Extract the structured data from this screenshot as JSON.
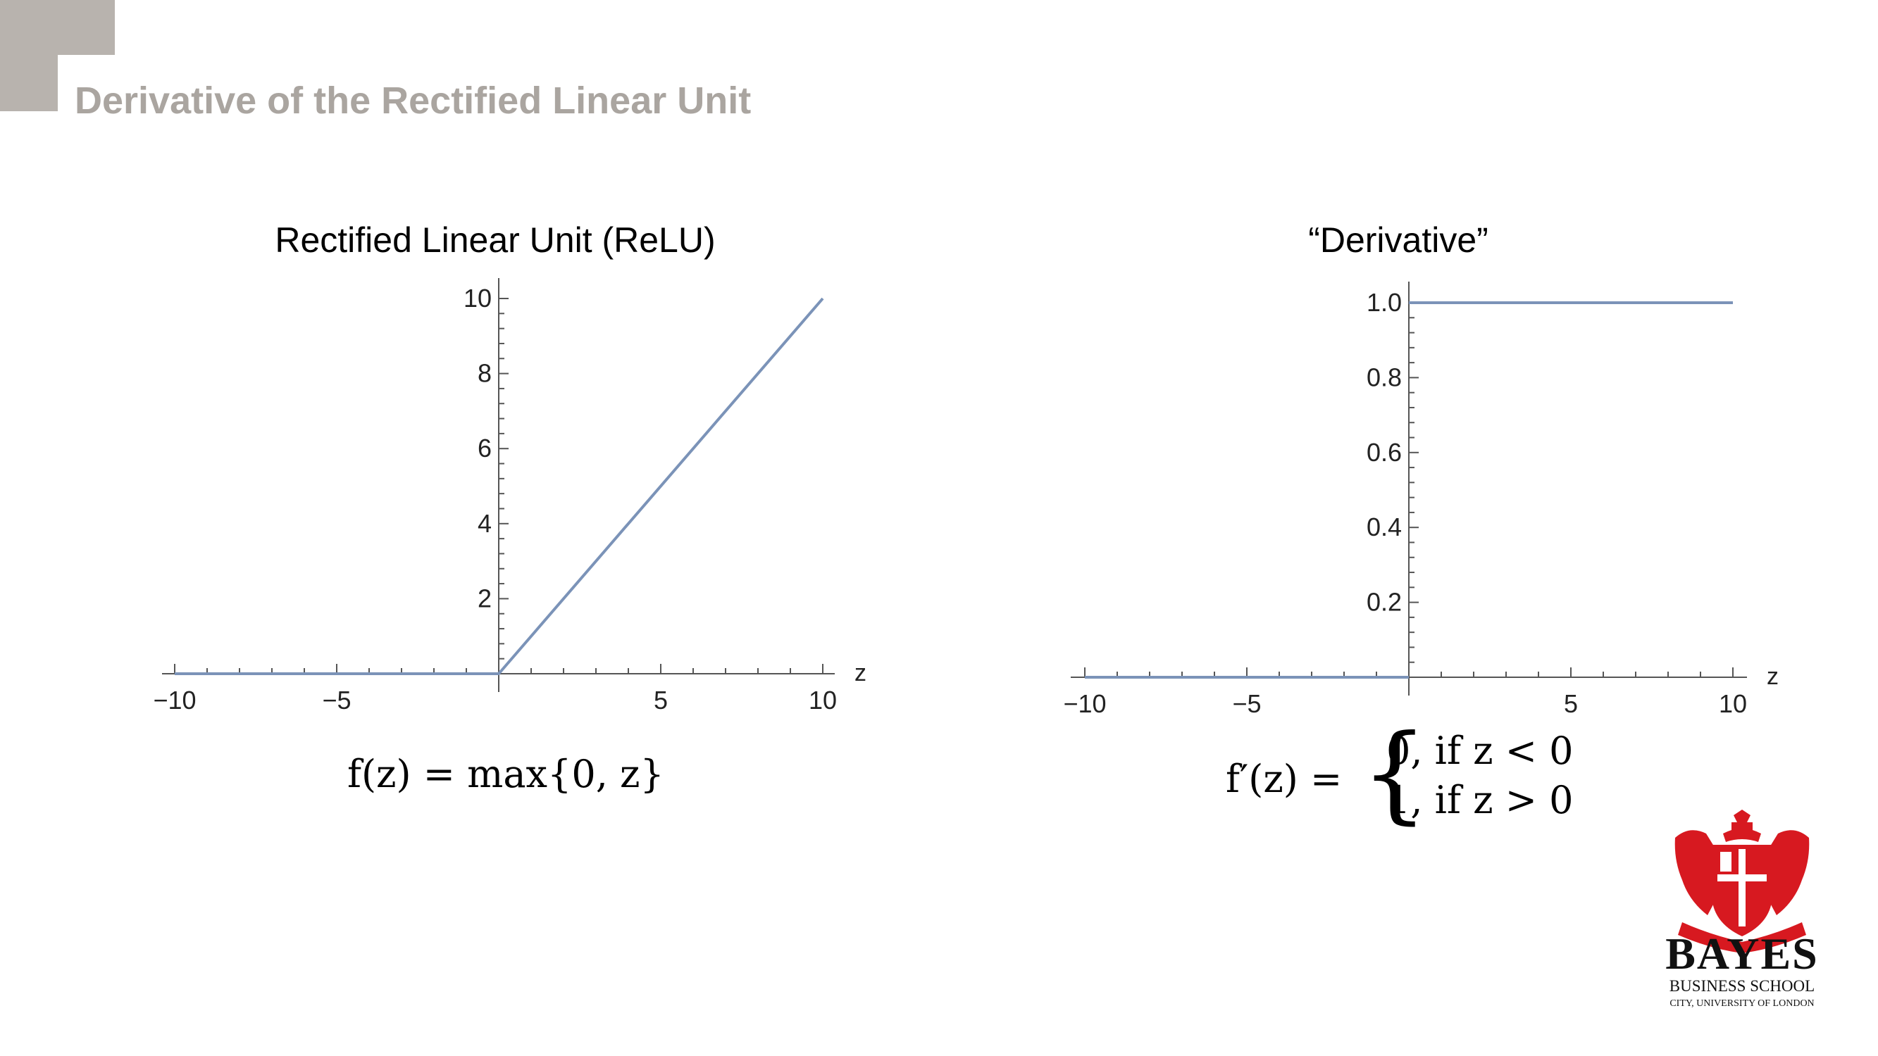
{
  "slide": {
    "title": "Derivative of the Rectified Linear Unit"
  },
  "chart_data": [
    {
      "type": "line",
      "title": "Rectified Linear Unit (ReLU)",
      "xlabel": "z",
      "ylabel": "",
      "xlim": [
        -10,
        10
      ],
      "ylim": [
        0,
        10
      ],
      "x_ticks": [
        "−10",
        "−5",
        "5",
        "10"
      ],
      "y_ticks": [
        "2",
        "4",
        "6",
        "8",
        "10"
      ],
      "series": [
        {
          "color": "#7b93b8",
          "points": [
            [
              -10,
              0
            ],
            [
              0,
              0
            ],
            [
              10,
              10
            ]
          ]
        }
      ],
      "grid": false,
      "formula": {
        "lhs": "f(z) = ",
        "rhs": "max{0, z}"
      }
    },
    {
      "type": "line",
      "title": "“Derivative”",
      "xlabel": "z",
      "ylabel": "",
      "xlim": [
        -10,
        10
      ],
      "ylim": [
        0,
        1.0
      ],
      "x_ticks": [
        "−10",
        "−5",
        "5",
        "10"
      ],
      "y_ticks": [
        "0.2",
        "0.4",
        "0.6",
        "0.8",
        "1.0"
      ],
      "series": [
        {
          "color": "#7b93b8",
          "points": [
            [
              -10,
              0
            ],
            [
              0,
              0
            ]
          ]
        },
        {
          "color": "#7b93b8",
          "points": [
            [
              0,
              1
            ],
            [
              10,
              1
            ]
          ]
        }
      ],
      "grid": false,
      "formula": {
        "lhs": "f′(z) =",
        "case1": "0, if z < 0",
        "case2": "1, if z > 0"
      }
    }
  ],
  "logo": {
    "name": "BAYES",
    "line2": "BUSINESS SCHOOL",
    "line3": "CITY, UNIVERSITY OF LONDON",
    "color": "#d71920"
  }
}
